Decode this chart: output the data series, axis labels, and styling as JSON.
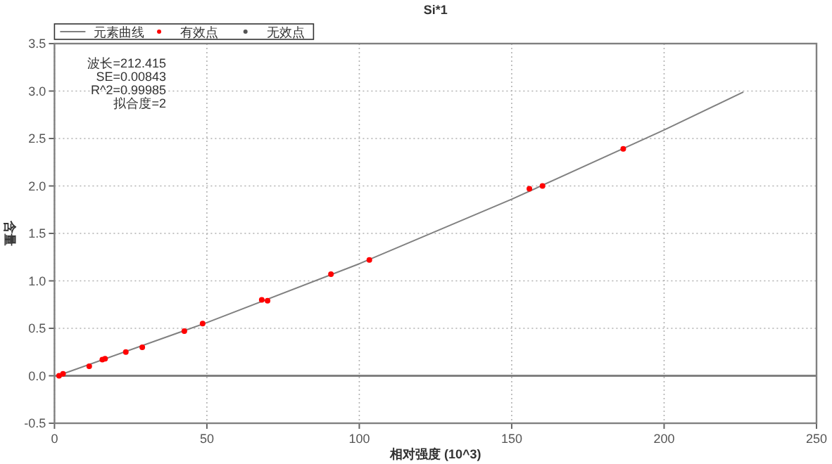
{
  "chart_data": {
    "type": "line",
    "title": "Si*1",
    "xlabel": "相对强度 (10^3)",
    "ylabel": "含量",
    "annotations": [
      "波长=212.415",
      "SE=0.00843",
      "R^2=0.99985",
      "拟合度=2"
    ],
    "xlim": [
      0,
      250
    ],
    "xticks": [
      0,
      50,
      100,
      150,
      200,
      250
    ],
    "ylim": [
      -0.5,
      3.5
    ],
    "yticks": [
      {
        "value": -0.5,
        "label": "-0.5"
      },
      {
        "value": 0,
        "label": "0.0"
      },
      {
        "value": 0.5,
        "label": "0.5"
      },
      {
        "value": 1,
        "label": "1.0"
      },
      {
        "value": 1.5,
        "label": "1.5"
      },
      {
        "value": 2,
        "label": "2.0"
      },
      {
        "value": 2.5,
        "label": "2.5"
      },
      {
        "value": 3,
        "label": "3.0"
      },
      {
        "value": 3.5,
        "label": "3.5"
      }
    ],
    "grid": true,
    "legend": "top left",
    "ref_lines": [
      {
        "axis": "y",
        "value": 0,
        "color": "#808080"
      }
    ],
    "series": [
      {
        "name": "元素曲线",
        "color": "#808080",
        "x": [
          1,
          50,
          100,
          150,
          200,
          226
        ],
        "values": [
          0,
          0.56,
          1.18,
          1.86,
          2.59,
          2.99
        ]
      },
      {
        "name": "有效点",
        "type": "scatter",
        "color": "#ff0000",
        "marker": "circle",
        "x": [
          1.5,
          2.8,
          11.4,
          15.7,
          16.6,
          23.4,
          28.8,
          42.6,
          48.6,
          68.0,
          69.9,
          90.7,
          103.3,
          155.8,
          160.1,
          186.6
        ],
        "values": [
          0.0,
          0.02,
          0.1,
          0.17,
          0.18,
          0.25,
          0.3,
          0.47,
          0.55,
          0.8,
          0.79,
          1.07,
          1.22,
          1.97,
          2.0,
          2.39
        ]
      },
      {
        "name": "无效点",
        "type": "scatter",
        "color": "#555555",
        "marker": "circle"
      }
    ]
  }
}
